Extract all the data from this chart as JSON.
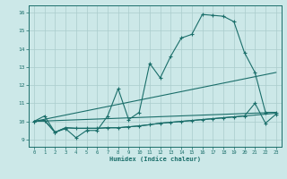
{
  "title": "",
  "xlabel": "Humidex (Indice chaleur)",
  "bg_color": "#cce8e8",
  "grid_color": "#aacccc",
  "line_color": "#1a6e6a",
  "xlim": [
    -0.5,
    23.5
  ],
  "ylim": [
    8.6,
    16.4
  ],
  "xticks": [
    0,
    1,
    2,
    3,
    4,
    5,
    6,
    7,
    8,
    9,
    10,
    11,
    12,
    13,
    14,
    15,
    16,
    17,
    18,
    19,
    20,
    21,
    22,
    23
  ],
  "yticks": [
    9,
    10,
    11,
    12,
    13,
    14,
    15,
    16
  ],
  "line1_x": [
    0,
    1,
    2,
    3,
    4,
    5,
    6,
    7,
    8,
    9,
    10,
    11,
    12,
    13,
    14,
    15,
    16,
    17,
    18,
    19,
    20,
    21,
    22,
    23
  ],
  "line1_y": [
    10.0,
    10.3,
    9.4,
    9.6,
    9.1,
    9.5,
    9.5,
    10.3,
    11.8,
    10.1,
    10.5,
    13.2,
    12.4,
    13.6,
    14.6,
    14.8,
    15.9,
    15.85,
    15.8,
    15.5,
    13.8,
    12.7,
    10.5,
    10.5
  ],
  "line2_x": [
    0,
    23
  ],
  "line2_y": [
    10.0,
    12.7
  ],
  "line3_x": [
    0,
    1,
    2,
    3,
    4,
    5,
    6,
    7,
    8,
    9,
    10,
    11,
    12,
    13,
    14,
    15,
    16,
    17,
    18,
    19,
    20,
    21,
    22,
    23
  ],
  "line3_y": [
    10.0,
    10.05,
    9.4,
    9.65,
    9.62,
    9.62,
    9.62,
    9.65,
    9.65,
    9.7,
    9.75,
    9.82,
    9.9,
    9.95,
    10.0,
    10.05,
    10.1,
    10.15,
    10.2,
    10.25,
    10.3,
    10.35,
    10.4,
    10.45
  ],
  "line4_x": [
    0,
    1,
    2,
    3,
    4,
    5,
    6,
    7,
    8,
    9,
    10,
    11,
    12,
    13,
    14,
    15,
    16,
    17,
    18,
    19,
    20,
    21,
    22,
    23
  ],
  "line4_y": [
    10.0,
    10.05,
    9.4,
    9.65,
    9.62,
    9.62,
    9.62,
    9.65,
    9.65,
    9.7,
    9.75,
    9.82,
    9.9,
    9.95,
    10.0,
    10.05,
    10.1,
    10.15,
    10.2,
    10.25,
    10.3,
    11.0,
    9.9,
    10.4
  ],
  "line5_x": [
    0,
    23
  ],
  "line5_y": [
    10.0,
    10.5
  ]
}
